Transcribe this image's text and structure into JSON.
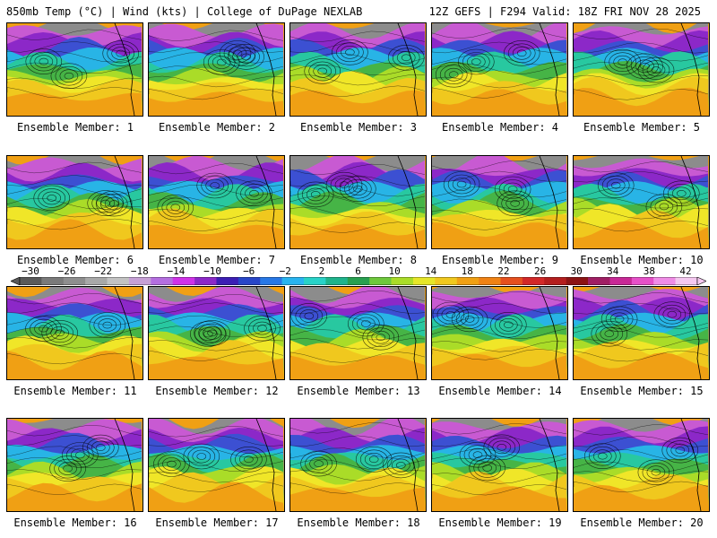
{
  "header": {
    "left": "850mb Temp (°C) | Wind (kts) | College of DuPage NEXLAB",
    "right": "12Z GEFS | F294 Valid: 18Z FRI NOV 28 2025"
  },
  "panels": [
    {
      "caption": "Ensemble Member: 1"
    },
    {
      "caption": "Ensemble Member: 2"
    },
    {
      "caption": "Ensemble Member: 3"
    },
    {
      "caption": "Ensemble Member: 4"
    },
    {
      "caption": "Ensemble Member: 5"
    },
    {
      "caption": "Ensemble Member: 6"
    },
    {
      "caption": "Ensemble Member: 7"
    },
    {
      "caption": "Ensemble Member: 8"
    },
    {
      "caption": "Ensemble Member: 9"
    },
    {
      "caption": "Ensemble Member: 10"
    },
    {
      "caption": "Ensemble Member: 11"
    },
    {
      "caption": "Ensemble Member: 12"
    },
    {
      "caption": "Ensemble Member: 13"
    },
    {
      "caption": "Ensemble Member: 14"
    },
    {
      "caption": "Ensemble Member: 15"
    },
    {
      "caption": "Ensemble Member: 16"
    },
    {
      "caption": "Ensemble Member: 17"
    },
    {
      "caption": "Ensemble Member: 18"
    },
    {
      "caption": "Ensemble Member: 19"
    },
    {
      "caption": "Ensemble Member: 20"
    }
  ],
  "colorbar": {
    "tick_labels": [
      "−30",
      "−26",
      "−22",
      "−18",
      "−14",
      "−10",
      "−6",
      "−2",
      "2",
      "6",
      "10",
      "14",
      "18",
      "22",
      "26",
      "30",
      "34",
      "38",
      "42"
    ],
    "colors": [
      "#5a5a5a",
      "#7a7a7a",
      "#8e8e8e",
      "#a8a8a8",
      "#c2c2c2",
      "#c6a0d6",
      "#b46ee0",
      "#d032e8",
      "#8c28c8",
      "#3c1eb4",
      "#2846c8",
      "#2878e6",
      "#28b4f0",
      "#28d2c8",
      "#1eb48c",
      "#28a050",
      "#6ec83c",
      "#aadc28",
      "#e6e628",
      "#f0c81e",
      "#f0a014",
      "#f08214",
      "#e6501e",
      "#d22828",
      "#b41e1e",
      "#8c1414",
      "#a01e64",
      "#c82896",
      "#e650c8",
      "#f08ce6",
      "#f5c8f0"
    ]
  }
}
